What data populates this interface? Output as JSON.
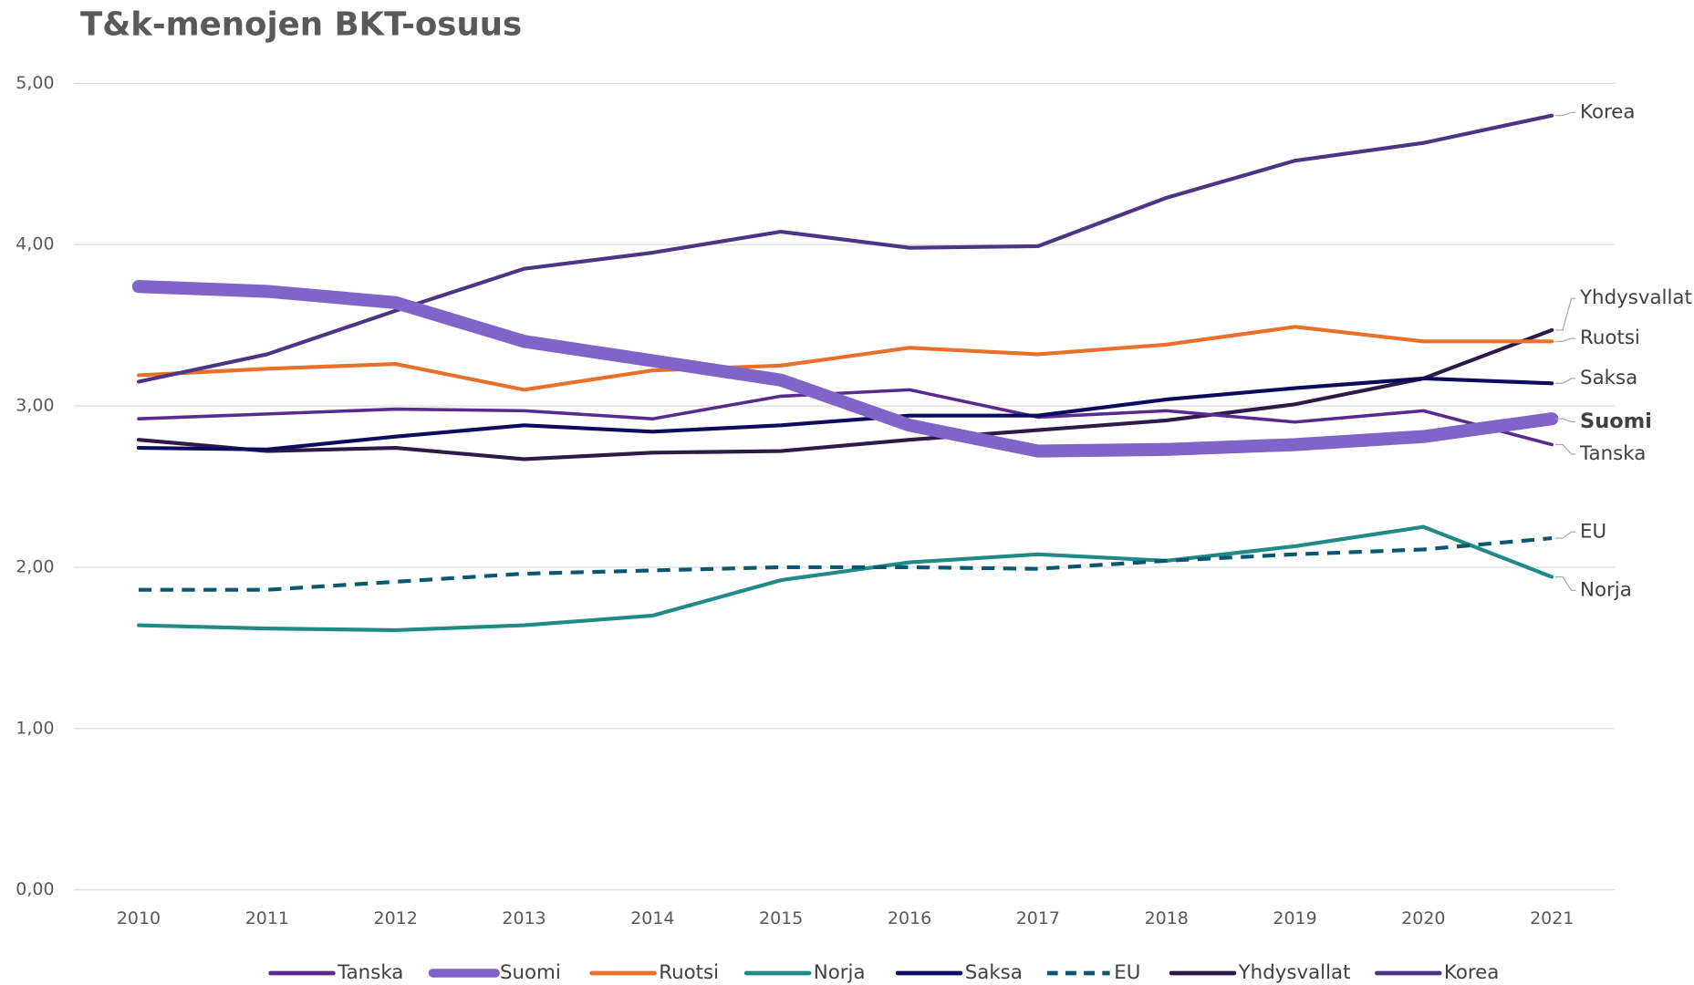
{
  "chart_data": {
    "type": "line",
    "title": "T&k-menojen BKT-osuus",
    "categories": [
      "2010",
      "2011",
      "2012",
      "2013",
      "2014",
      "2015",
      "2016",
      "2017",
      "2018",
      "2019",
      "2020",
      "2021"
    ],
    "ylim": [
      0,
      5
    ],
    "yticks": [
      {
        "value": 0,
        "label": "0,00"
      },
      {
        "value": 1,
        "label": "1,00"
      },
      {
        "value": 2,
        "label": "2,00"
      },
      {
        "value": 3,
        "label": "3,00"
      },
      {
        "value": 4,
        "label": "4,00"
      },
      {
        "value": 5,
        "label": "5,00"
      }
    ],
    "grid": true,
    "legend": "bottom",
    "series": [
      {
        "name": "Tanska",
        "color": "#5b2a8f",
        "values": [
          2.92,
          2.95,
          2.98,
          2.97,
          2.92,
          3.06,
          3.1,
          2.93,
          2.97,
          2.9,
          2.97,
          2.76
        ]
      },
      {
        "name": "Suomi",
        "color": "#8064c8",
        "values": [
          3.74,
          3.71,
          3.64,
          3.4,
          3.28,
          3.16,
          2.88,
          2.72,
          2.73,
          2.76,
          2.81,
          2.92
        ]
      },
      {
        "name": "Ruotsi",
        "color": "#e8702a",
        "values": [
          3.19,
          3.23,
          3.26,
          3.1,
          3.22,
          3.25,
          3.36,
          3.32,
          3.38,
          3.49,
          3.4,
          3.4
        ]
      },
      {
        "name": "Norja",
        "color": "#1f8a86",
        "values": [
          1.64,
          1.62,
          1.61,
          1.64,
          1.7,
          1.92,
          2.03,
          2.08,
          2.04,
          2.13,
          2.25,
          1.94
        ]
      },
      {
        "name": "Saksa",
        "color": "#0d0b5e",
        "values": [
          2.74,
          2.73,
          2.81,
          2.88,
          2.84,
          2.88,
          2.94,
          2.94,
          3.04,
          3.11,
          3.17,
          3.14
        ]
      },
      {
        "name": "EU",
        "color": "#0b5772",
        "dashed": true,
        "values": [
          1.86,
          1.86,
          1.91,
          1.96,
          1.98,
          2.0,
          2.0,
          1.99,
          2.04,
          2.08,
          2.11,
          2.18
        ]
      },
      {
        "name": "Yhdysvallat",
        "color": "#2e1a47",
        "values": [
          2.79,
          2.72,
          2.74,
          2.67,
          2.71,
          2.72,
          2.79,
          2.85,
          2.91,
          3.01,
          3.17,
          3.47
        ]
      },
      {
        "name": "Korea",
        "color": "#4b3584",
        "values": [
          3.15,
          3.32,
          3.59,
          3.85,
          3.95,
          4.08,
          3.98,
          3.99,
          4.29,
          4.52,
          4.63,
          4.8
        ]
      }
    ]
  }
}
